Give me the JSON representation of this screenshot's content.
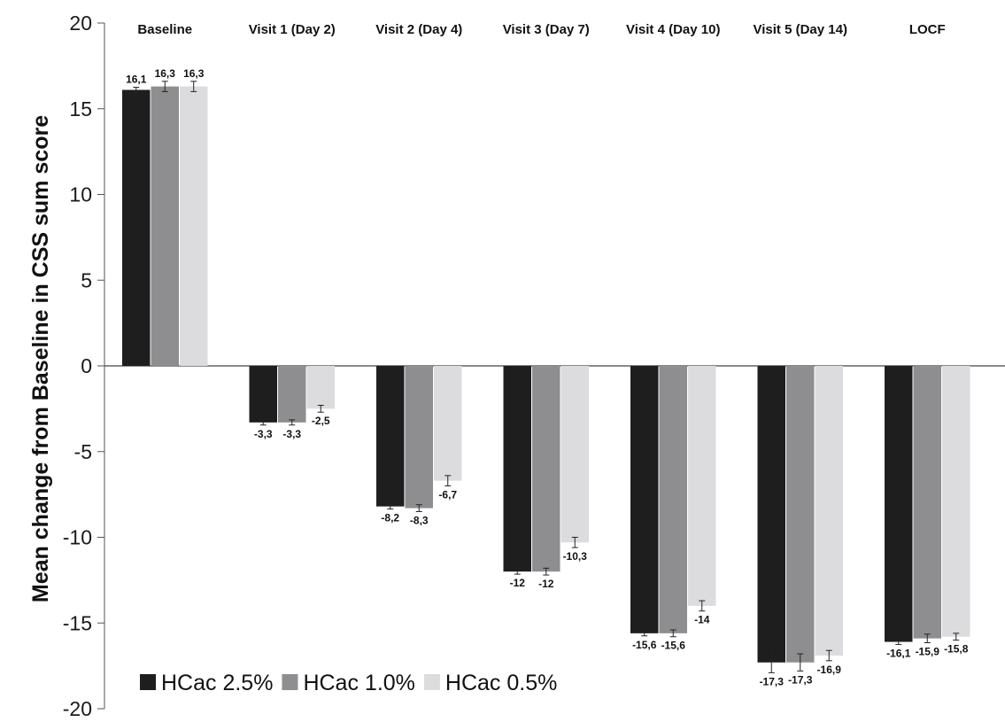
{
  "chart_data": {
    "type": "bar",
    "title": "",
    "xlabel": "",
    "ylabel": "Mean change from Baseline in CSS sum score",
    "ylim": [
      -20,
      20
    ],
    "yticks": [
      20,
      15,
      10,
      5,
      0,
      -5,
      -10,
      -15,
      -20
    ],
    "grid": false,
    "legend_position": "bottom-left",
    "categories": [
      "Baseline",
      "Visit 1 (Day 2)",
      "Visit 2 (Day 4)",
      "Visit 3 (Day 7)",
      "Visit 4 (Day 10)",
      "Visit 5 (Day 14)",
      "LOCF"
    ],
    "series": [
      {
        "name": "HCac 2.5%",
        "color": "#1e1e1e",
        "values": [
          16.1,
          -3.3,
          -8.2,
          -12,
          -15.6,
          -17.3,
          -16.1
        ],
        "errors": [
          0.15,
          0.15,
          0.15,
          0.15,
          0.15,
          0.6,
          0.15
        ],
        "labels": [
          "16,1",
          "-3,3",
          "-8,2",
          "-12",
          "-15,6",
          "-17,3",
          "-16,1"
        ]
      },
      {
        "name": "HCac 1.0%",
        "color": "#8e8e90",
        "values": [
          16.3,
          -3.3,
          -8.3,
          -12,
          -15.6,
          -17.3,
          -15.9
        ],
        "errors": [
          0.3,
          0.15,
          0.2,
          0.2,
          0.2,
          0.5,
          0.25
        ],
        "labels": [
          "16,3",
          "-3,3",
          "-8,3",
          "-12",
          "-15,6",
          "-17,3",
          "-15,9"
        ]
      },
      {
        "name": "HCac 0.5%",
        "color": "#dcdcde",
        "values": [
          16.3,
          -2.5,
          -6.7,
          -10.3,
          -14,
          -16.9,
          -15.8
        ],
        "errors": [
          0.3,
          0.2,
          0.3,
          0.3,
          0.3,
          0.3,
          0.2
        ],
        "labels": [
          "16,3",
          "-2,5",
          "-6,7",
          "-10,3",
          "-14",
          "-16,9",
          "-15,8"
        ]
      }
    ]
  }
}
